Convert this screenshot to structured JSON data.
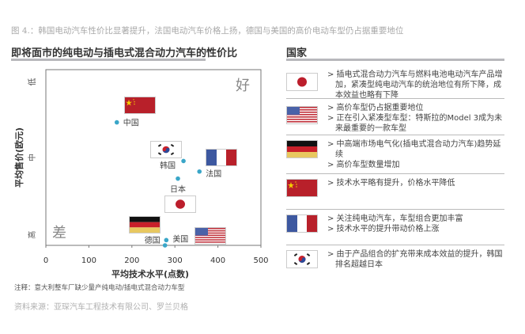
{
  "caption": "图 4.：韩国电动汽车性价比显著提升，法国电动汽车价格上扬，德国与美国的高价电动车型仍占据重要地位",
  "left_heading": "即将面市的纯电动与插电式混合动力汽车的性价比",
  "right_heading": "国家",
  "note": "注释：意大利整车厂缺少量产纯电动/插电式混合动力车型",
  "source": "资料来源：亚琛汽车工程技术有限公司、罗兰贝格",
  "colors": {
    "point": "#3aa6c8",
    "axis": "#777",
    "rule": "#b8b8bc"
  },
  "chart_data": {
    "type": "scatter",
    "xlabel": "平均技术水平(点数)",
    "ylabel": "平均售价(欧元)",
    "xlim": [
      0,
      500
    ],
    "xticks": [
      "0",
      "100",
      "200",
      "300",
      "400",
      "500"
    ],
    "ylim": [
      0,
      100
    ],
    "yticks": [
      {
        "label": "低",
        "value": 93
      },
      {
        "label": "中",
        "value": 50
      },
      {
        "label": "高",
        "value": 6
      }
    ],
    "annotations": {
      "good": "好",
      "bad": "差"
    },
    "points": [
      {
        "label": "中国",
        "x": 165,
        "y": 70,
        "flag": "cn"
      },
      {
        "label": "韩国",
        "x": 320,
        "y": 48,
        "flag": "kr"
      },
      {
        "label": "法国",
        "x": 357,
        "y": 42,
        "flag": "fr"
      },
      {
        "label": "日本",
        "x": 307,
        "y": 38,
        "flag": "jp"
      },
      {
        "label": "美国",
        "x": 280,
        "y": 3,
        "flag": "us"
      },
      {
        "label": "德国",
        "x": 277,
        "y": 0,
        "flag": "de"
      }
    ]
  },
  "countries": [
    {
      "flag": "jp",
      "bullets": [
        "插电式混合动力汽车与燃料电池电动汽车产品增加，紧凑型纯电动汽车的统治地位有所下降，成本效益也略有下降"
      ]
    },
    {
      "flag": "us",
      "bullets": [
        "高价车型仍占据重要地位",
        "正在引入紧凑型车型：特斯拉的Model 3成为未来最重要的一款车型"
      ]
    },
    {
      "flag": "de",
      "bullets": [
        "中高端市场电气化(插电式混合动力汽车)趋势延续",
        "高价车型数量增加"
      ]
    },
    {
      "flag": "cn",
      "bullets": [
        "技术水平略有提升，价格水平降低"
      ]
    },
    {
      "flag": "fr",
      "bullets": [
        "关注纯电动汽车，车型组合更加丰富",
        "技术水平的提升带动价格上涨"
      ]
    },
    {
      "flag": "kr",
      "bullets": [
        "由于产品组合的扩充带来成本效益的提升，韩国排名超越日本"
      ]
    }
  ]
}
